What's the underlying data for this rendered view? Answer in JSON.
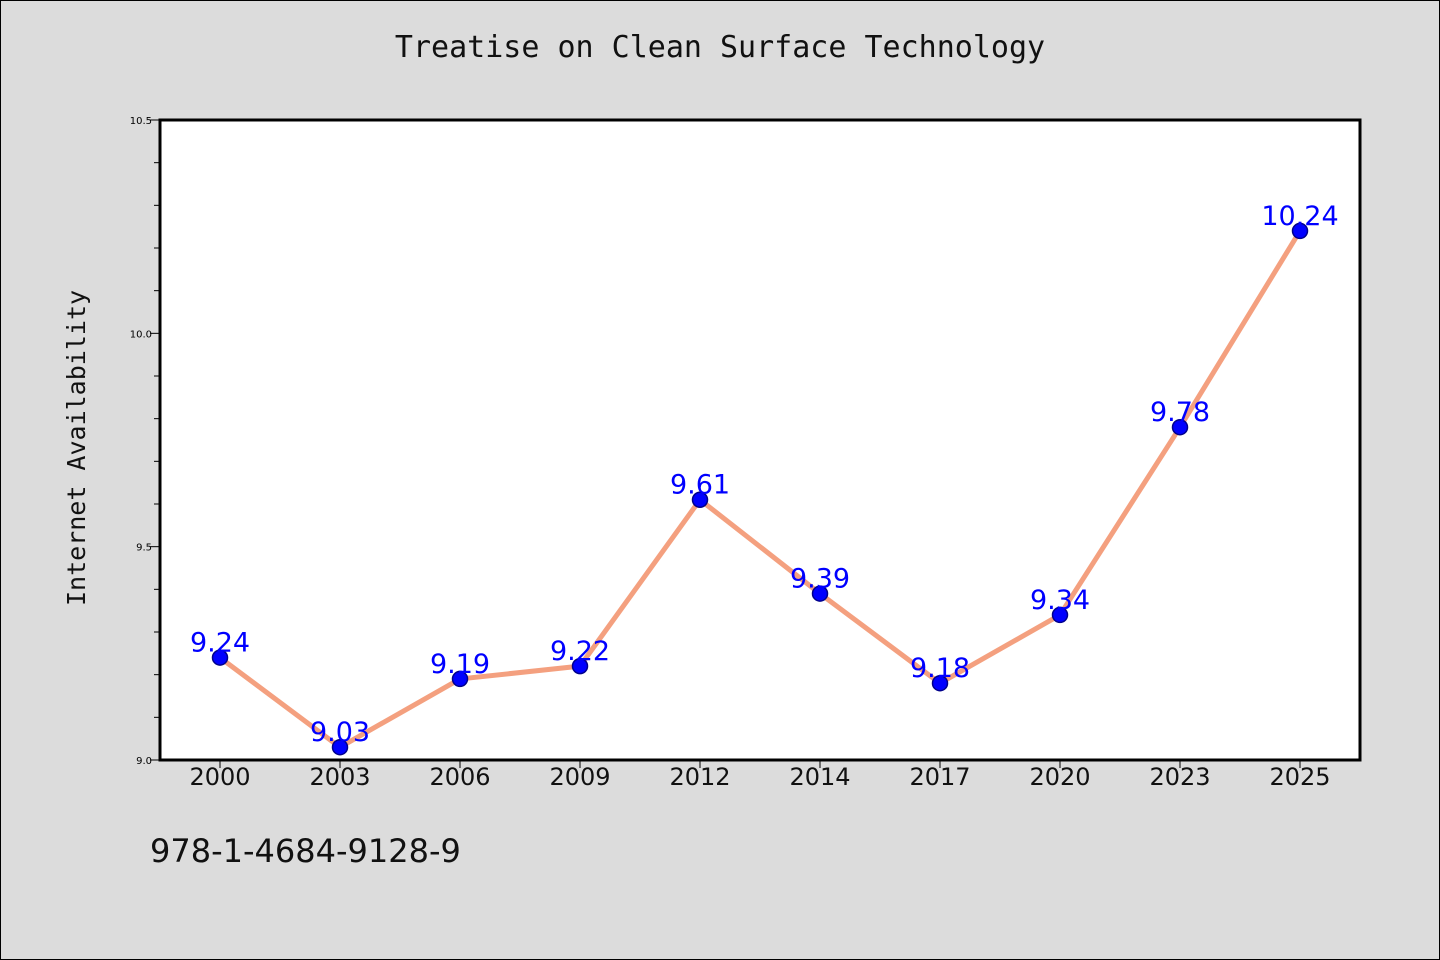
{
  "chart_data": {
    "type": "line",
    "title": "Treatise on Clean Surface Technology",
    "ylabel": "Internet Availability",
    "xlabel": "",
    "categories": [
      "2000",
      "2003",
      "2006",
      "2009",
      "2012",
      "2014",
      "2017",
      "2020",
      "2023",
      "2025"
    ],
    "series": [
      {
        "values": [
          9.24,
          9.03,
          9.19,
          9.22,
          9.61,
          9.39,
          9.18,
          9.34,
          9.78,
          10.24
        ]
      }
    ],
    "data_labels": [
      "9.24",
      "9.03",
      "9.19",
      "9.22",
      "9.61",
      "9.39",
      "9.18",
      "9.34",
      "9.78",
      "10.24"
    ],
    "ylim": [
      9.0,
      10.5
    ],
    "yticks": [
      "9.0",
      "9.5",
      "10.0",
      "10.5"
    ],
    "grid": false,
    "colors": {
      "line": "#f4a07f",
      "marker": "#0000ff",
      "marker_edge": "#00008b",
      "label": "#0000ff",
      "background": "#dcdcdc",
      "plot_background": "#ffffff"
    }
  },
  "footer": {
    "isbn": "978-1-4684-9128-9"
  }
}
